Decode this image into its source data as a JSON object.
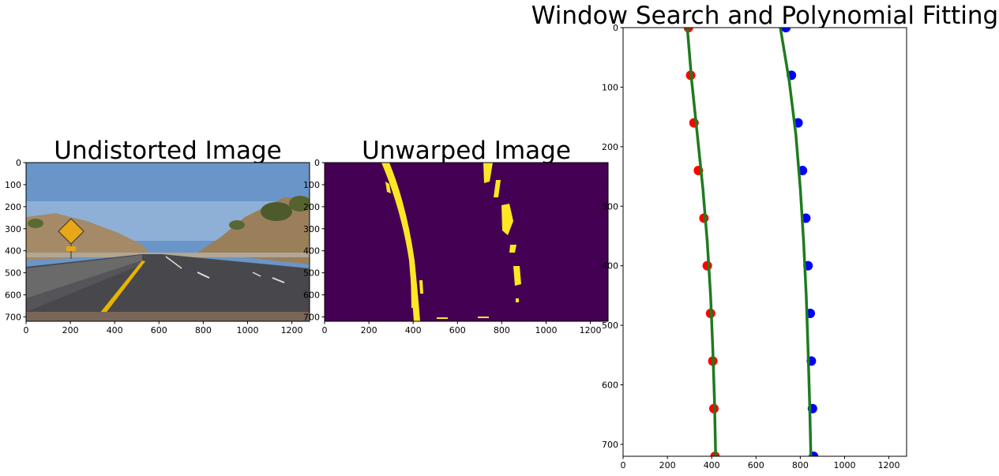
{
  "chart_data": [
    {
      "type": "image",
      "title": "Undistorted Image",
      "x_ticks": [
        0,
        200,
        400,
        600,
        800,
        1000,
        1200
      ],
      "y_ticks": [
        0,
        100,
        200,
        300,
        400,
        500,
        600,
        700
      ],
      "xlim": [
        0,
        1280
      ],
      "ylim": [
        720,
        0
      ],
      "colors": {
        "sky": "#5b86b8",
        "road": "#4b4b4f",
        "hill": "#9c8463",
        "lane_yellow": "#e8b400",
        "sign": "#e7a817"
      }
    },
    {
      "type": "image",
      "title": "Unwarped Image",
      "x_ticks": [
        0,
        200,
        400,
        600,
        800,
        1000,
        1200
      ],
      "y_ticks": [
        0,
        100,
        200,
        300,
        400,
        500,
        600,
        700
      ],
      "xlim": [
        0,
        1280
      ],
      "ylim": [
        720,
        0
      ],
      "colors": {
        "background": "#440154",
        "foreground": "#fde725"
      }
    },
    {
      "type": "scatter",
      "title": "Window Search and Polynomial Fitting",
      "x_ticks": [
        0,
        200,
        400,
        600,
        800,
        1000,
        1200
      ],
      "y_ticks": [
        0,
        100,
        200,
        300,
        400,
        500,
        600,
        700
      ],
      "xlim": [
        0,
        1280
      ],
      "ylim": [
        720,
        0
      ],
      "series": [
        {
          "color": "#ff0000",
          "values": [
            [
              295,
              0
            ],
            [
              305,
              80
            ],
            [
              320,
              160
            ],
            [
              340,
              240
            ],
            [
              365,
              320
            ],
            [
              380,
              400
            ],
            [
              395,
              480
            ],
            [
              405,
              560
            ],
            [
              410,
              640
            ],
            [
              415,
              720
            ]
          ]
        },
        {
          "color": "#0000ff",
          "values": [
            [
              735,
              0
            ],
            [
              760,
              80
            ],
            [
              790,
              160
            ],
            [
              810,
              240
            ],
            [
              825,
              320
            ],
            [
              835,
              400
            ],
            [
              845,
              480
            ],
            [
              850,
              560
            ],
            [
              855,
              640
            ],
            [
              860,
              720
            ]
          ]
        }
      ],
      "fits": [
        {
          "color": "#1e7b1e",
          "values": [
            [
              290,
              0
            ],
            [
              310,
              90
            ],
            [
              335,
              180
            ],
            [
              360,
              270
            ],
            [
              380,
              360
            ],
            [
              395,
              450
            ],
            [
              405,
              540
            ],
            [
              413,
              630
            ],
            [
              418,
              720
            ]
          ]
        },
        {
          "color": "#1e7b1e",
          "values": [
            [
              710,
              0
            ],
            [
              750,
              90
            ],
            [
              780,
              180
            ],
            [
              800,
              270
            ],
            [
              815,
              360
            ],
            [
              827,
              450
            ],
            [
              835,
              540
            ],
            [
              842,
              630
            ],
            [
              848,
              720
            ]
          ]
        }
      ]
    }
  ]
}
